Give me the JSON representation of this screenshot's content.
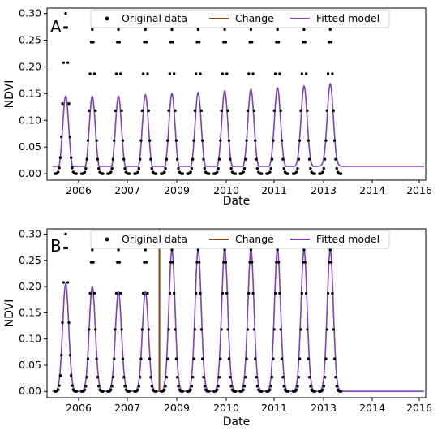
{
  "chart_data": [
    {
      "panel": "A",
      "type": "line",
      "xlabel": "Date",
      "ylabel": "NDVI",
      "xlim": [
        2005.45,
        2016.0
      ],
      "ylim": [
        -0.012,
        0.31
      ],
      "xticks": [
        2006,
        2007,
        2009,
        2010,
        2011,
        2013,
        2014,
        2016
      ],
      "yticks": [
        0.0,
        0.05,
        0.1,
        0.15,
        0.2,
        0.25,
        0.3
      ],
      "ytick_labels": [
        "0.00",
        "0.05",
        "0.10",
        "0.15",
        "0.20",
        "0.25",
        "0.30"
      ],
      "grid": false,
      "legend": {
        "placement": "top",
        "entries": [
          "Original data",
          "Change",
          "Fitted model"
        ]
      },
      "series": [
        {
          "name": "Original data",
          "kind": "scatter",
          "color": "#000000",
          "seasons": [
            {
              "peak": 2005.97,
              "peak_ndvi": 0.3,
              "levels": [
                0.0,
                0.0,
                0.0,
                0.004,
                0.008,
                0.024,
                0.06,
                0.12,
                0.2,
                0.27,
                0.3,
                0.27,
                0.2,
                0.12,
                0.06,
                0.024,
                0.008,
                0.004,
                0.0,
                0.0,
                0.0
              ]
            },
            {
              "peak": 2006.71,
              "peak_ndvi": 0.27
            },
            {
              "peak": 2007.44,
              "peak_ndvi": 0.27
            },
            {
              "peak": 2008.19,
              "peak_ndvi": 0.27
            },
            {
              "peak": 2008.93,
              "peak_ndvi": 0.27
            },
            {
              "peak": 2009.66,
              "peak_ndvi": 0.27
            },
            {
              "peak": 2010.4,
              "peak_ndvi": 0.27
            },
            {
              "peak": 2011.13,
              "peak_ndvi": 0.27
            },
            {
              "peak": 2011.87,
              "peak_ndvi": 0.27
            },
            {
              "peak": 2012.61,
              "peak_ndvi": 0.27
            },
            {
              "peak": 2013.34,
              "peak_ndvi": 0.27
            }
          ]
        },
        {
          "name": "Change",
          "kind": "vline",
          "color": "#8b4513",
          "x": null
        },
        {
          "name": "Fitted model",
          "kind": "line",
          "color": "#7f3fbf",
          "seasons": [
            {
              "peak": 2005.97,
              "amplitude": 0.145,
              "baseline": 0.0
            },
            {
              "peak": 2006.71,
              "amplitude": 0.145,
              "baseline": 0.0
            },
            {
              "peak": 2007.44,
              "amplitude": 0.145,
              "baseline": 0.0
            },
            {
              "peak": 2008.19,
              "amplitude": 0.147,
              "baseline": 0.001
            },
            {
              "peak": 2008.93,
              "amplitude": 0.148,
              "baseline": 0.002
            },
            {
              "peak": 2009.66,
              "amplitude": 0.148,
              "baseline": 0.004
            },
            {
              "peak": 2010.4,
              "amplitude": 0.149,
              "baseline": 0.006
            },
            {
              "peak": 2011.13,
              "amplitude": 0.15,
              "baseline": 0.008
            },
            {
              "peak": 2011.87,
              "amplitude": 0.151,
              "baseline": 0.01
            },
            {
              "peak": 2012.61,
              "amplitude": 0.152,
              "baseline": 0.012
            },
            {
              "peak": 2013.34,
              "amplitude": 0.154,
              "baseline": 0.014
            }
          ]
        }
      ]
    },
    {
      "panel": "B",
      "type": "line",
      "xlabel": "Date",
      "ylabel": "NDVI",
      "xlim": [
        2005.45,
        2016.0
      ],
      "ylim": [
        -0.012,
        0.31
      ],
      "xticks": [
        2006,
        2007,
        2009,
        2010,
        2011,
        2013,
        2014,
        2016
      ],
      "yticks": [
        0.0,
        0.05,
        0.1,
        0.15,
        0.2,
        0.25,
        0.3
      ],
      "ytick_labels": [
        "0.00",
        "0.05",
        "0.10",
        "0.15",
        "0.20",
        "0.25",
        "0.30"
      ],
      "grid": false,
      "legend": {
        "placement": "top",
        "entries": [
          "Original data",
          "Change",
          "Fitted model"
        ]
      },
      "series": [
        {
          "name": "Original data",
          "kind": "scatter",
          "color": "#000000",
          "seasons": [
            {
              "peak": 2005.97,
              "peak_ndvi": 0.3
            },
            {
              "peak": 2006.71,
              "peak_ndvi": 0.27
            },
            {
              "peak": 2007.44,
              "peak_ndvi": 0.27
            },
            {
              "peak": 2008.19,
              "peak_ndvi": 0.27
            },
            {
              "peak": 2008.93,
              "peak_ndvi": 0.27
            },
            {
              "peak": 2009.66,
              "peak_ndvi": 0.27
            },
            {
              "peak": 2010.4,
              "peak_ndvi": 0.27
            },
            {
              "peak": 2011.13,
              "peak_ndvi": 0.27
            },
            {
              "peak": 2011.87,
              "peak_ndvi": 0.27
            },
            {
              "peak": 2012.61,
              "peak_ndvi": 0.27
            },
            {
              "peak": 2013.34,
              "peak_ndvi": 0.27
            }
          ]
        },
        {
          "name": "Change",
          "kind": "vline",
          "color": "#8b4513",
          "x": 2008.58,
          "y_top": 0.31
        },
        {
          "name": "Fitted model",
          "kind": "line",
          "color": "#7f3fbf",
          "seasons": [
            {
              "peak": 2005.97,
              "amplitude": 0.205,
              "baseline": 0.0
            },
            {
              "peak": 2006.71,
              "amplitude": 0.2,
              "baseline": 0.0
            },
            {
              "peak": 2007.44,
              "amplitude": 0.19,
              "baseline": 0.0
            },
            {
              "peak": 2008.19,
              "amplitude": 0.19,
              "baseline": 0.0
            },
            {
              "peak": 2008.93,
              "amplitude": 0.27,
              "baseline": 0.0
            },
            {
              "peak": 2009.66,
              "amplitude": 0.27,
              "baseline": 0.0
            },
            {
              "peak": 2010.4,
              "amplitude": 0.27,
              "baseline": 0.0
            },
            {
              "peak": 2011.13,
              "amplitude": 0.27,
              "baseline": 0.0
            },
            {
              "peak": 2011.87,
              "amplitude": 0.27,
              "baseline": 0.0
            },
            {
              "peak": 2012.61,
              "amplitude": 0.27,
              "baseline": 0.0
            },
            {
              "peak": 2013.34,
              "amplitude": 0.27,
              "baseline": 0.0
            }
          ]
        }
      ]
    }
  ]
}
